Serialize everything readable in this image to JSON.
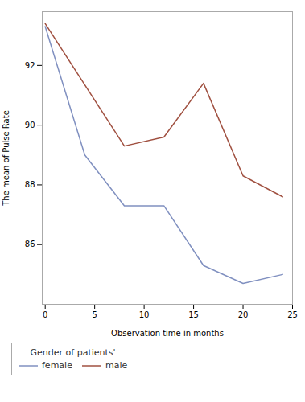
{
  "chart_data": {
    "type": "line",
    "xlabel": "Observation time in months",
    "ylabel": "The mean of Pulse Rate",
    "legend_title": "Gender of patients'",
    "series": [
      {
        "name": "female",
        "color": "#8090c0",
        "x": [
          0,
          4,
          8,
          12,
          16,
          20,
          24
        ],
        "values": [
          93.3,
          89.0,
          87.3,
          87.3,
          85.3,
          84.7,
          85.0
        ]
      },
      {
        "name": "male",
        "color": "#a05040",
        "x": [
          0,
          8,
          12,
          16,
          20,
          24
        ],
        "values": [
          93.4,
          89.3,
          89.6,
          91.4,
          88.3,
          87.6
        ]
      }
    ],
    "xlim": [
      -0.3,
      25
    ],
    "ylim": [
      84.0,
      93.8
    ],
    "xticks": [
      0,
      5,
      10,
      15,
      20,
      25
    ],
    "yticks": [
      86,
      88,
      90,
      92
    ],
    "grid": false,
    "legend": "bottom"
  }
}
